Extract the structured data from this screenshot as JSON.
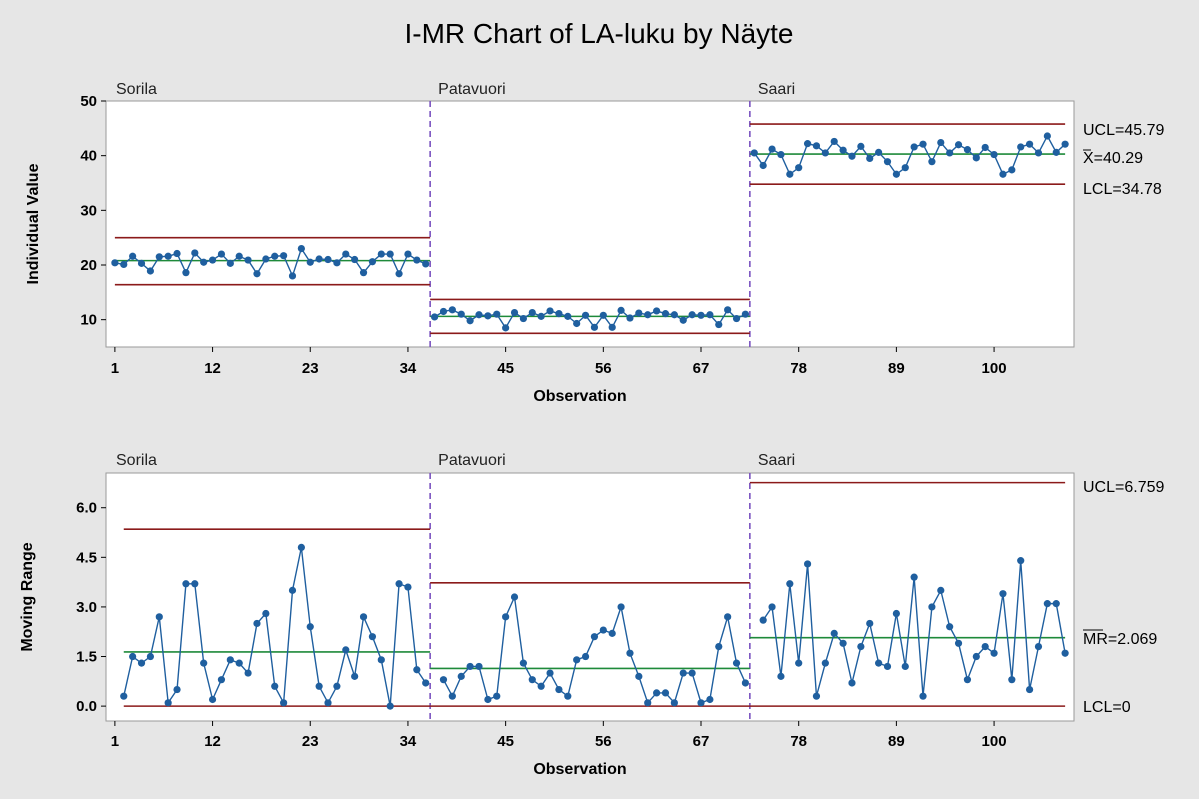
{
  "chart_data": [
    {
      "type": "line",
      "chart": "individuals",
      "title": "I-MR Chart of LA-luku by Näyte",
      "ylabel": "Individual Value",
      "xlabel": "Observation",
      "ylim": [
        5,
        50
      ],
      "yticks": [
        10,
        20,
        30,
        40,
        50
      ],
      "xlim": [
        0,
        109
      ],
      "xticks": [
        1,
        12,
        23,
        34,
        45,
        56,
        67,
        78,
        89,
        100
      ],
      "stage_boundaries": [
        36.5,
        72.5
      ],
      "stages": [
        {
          "name": "Sorila",
          "start": 1,
          "ucl": 25.0,
          "center": 20.8,
          "lcl": 16.4,
          "values": [
            20.4,
            20.1,
            21.6,
            20.3,
            18.9,
            21.5,
            21.6,
            22.1,
            18.6,
            22.2,
            20.5,
            20.9,
            22.0,
            20.3,
            21.6,
            20.9,
            18.4,
            21.1,
            21.6,
            21.7,
            18.0,
            23.0,
            20.5,
            21.1,
            21.0,
            20.4,
            22.0,
            21.0,
            18.6,
            20.6,
            22.0,
            22.0,
            18.4,
            22.0,
            20.9,
            20.2
          ]
        },
        {
          "name": "Patavuori",
          "start": 37,
          "ucl": 13.7,
          "center": 10.6,
          "lcl": 7.5,
          "values": [
            10.5,
            11.5,
            11.8,
            11.0,
            9.8,
            10.9,
            10.7,
            11.0,
            8.5,
            11.3,
            10.2,
            11.3,
            10.6,
            11.6,
            11.1,
            10.6,
            9.3,
            10.8,
            8.6,
            10.8,
            8.6,
            11.7,
            10.3,
            11.2,
            10.9,
            11.6,
            11.1,
            10.9,
            9.9,
            10.9,
            10.8,
            10.9,
            9.1,
            11.8,
            10.2,
            11.0
          ]
        },
        {
          "name": "Saari",
          "start": 73,
          "ucl": 45.79,
          "center": 40.29,
          "lcl": 34.78,
          "values": [
            40.5,
            38.2,
            41.2,
            40.2,
            36.6,
            37.8,
            42.2,
            41.8,
            40.5,
            42.6,
            41.0,
            39.9,
            41.7,
            39.5,
            40.6,
            38.9,
            36.6,
            37.8,
            41.6,
            42.1,
            38.9,
            42.4,
            40.5,
            42.0,
            41.1,
            39.6,
            41.5,
            40.2,
            36.6,
            37.4,
            41.6,
            42.1,
            40.5,
            43.6,
            40.6,
            42.1
          ]
        }
      ],
      "limit_labels": {
        "ucl": "UCL=45.79",
        "center": "X=40.29",
        "lcl": "LCL=34.78"
      },
      "colors": {
        "data": "#1f5f9f",
        "center": "#1e8a3a",
        "limit": "#8b1a1a",
        "divider": "#7a52c0"
      }
    },
    {
      "type": "line",
      "chart": "moving-range",
      "ylabel": "Moving Range",
      "xlabel": "Observation",
      "ylim": [
        -0.45,
        7.05
      ],
      "yticks": [
        0.0,
        1.5,
        3.0,
        4.5,
        6.0
      ],
      "ytick_labels": [
        "0.0",
        "1.5",
        "3.0",
        "4.5",
        "6.0"
      ],
      "xlim": [
        0,
        109
      ],
      "xticks": [
        1,
        12,
        23,
        34,
        45,
        56,
        67,
        78,
        89,
        100
      ],
      "stage_boundaries": [
        36.5,
        72.5
      ],
      "stages": [
        {
          "name": "Sorila",
          "start": 2,
          "ucl": 5.35,
          "center": 1.64,
          "lcl": 0,
          "values": [
            0.3,
            1.5,
            1.3,
            1.5,
            2.7,
            0.1,
            0.5,
            3.7,
            3.7,
            1.3,
            0.2,
            0.8,
            1.4,
            1.3,
            1.0,
            2.5,
            2.8,
            0.6,
            0.1,
            3.5,
            4.8,
            2.4,
            0.6,
            0.1,
            0.6,
            1.7,
            0.9,
            2.7,
            2.1,
            1.4,
            0.0,
            3.7,
            3.6,
            1.1,
            0.7
          ]
        },
        {
          "name": "Patavuori",
          "start": 38,
          "ucl": 3.73,
          "center": 1.14,
          "lcl": 0,
          "values": [
            0.8,
            0.3,
            0.9,
            1.2,
            1.2,
            0.2,
            0.3,
            2.7,
            3.3,
            1.3,
            0.8,
            0.6,
            1.0,
            0.5,
            0.3,
            1.4,
            1.5,
            2.1,
            2.3,
            2.2,
            3.0,
            1.6,
            0.9,
            0.1,
            0.4,
            0.4,
            0.1,
            1.0,
            1.0,
            0.1,
            0.2,
            1.8,
            2.7,
            1.3,
            0.7
          ]
        },
        {
          "name": "Saari",
          "start": 74,
          "ucl": 6.759,
          "center": 2.069,
          "lcl": 0,
          "values": [
            2.6,
            3.0,
            0.9,
            3.7,
            1.3,
            4.3,
            0.3,
            1.3,
            2.2,
            1.9,
            0.7,
            1.8,
            2.5,
            1.3,
            1.2,
            2.8,
            1.2,
            3.9,
            0.3,
            3.0,
            3.5,
            2.4,
            1.9,
            0.8,
            1.5,
            1.8,
            1.6,
            3.4,
            0.8,
            4.4,
            0.5,
            1.8,
            3.1,
            3.1,
            1.6
          ]
        }
      ],
      "limit_labels": {
        "ucl": "UCL=6.759",
        "center": "MR=2.069",
        "lcl": "LCL=0"
      },
      "colors": {
        "data": "#1f5f9f",
        "center": "#1e8a3a",
        "limit": "#8b1a1a",
        "divider": "#7a52c0"
      }
    }
  ]
}
